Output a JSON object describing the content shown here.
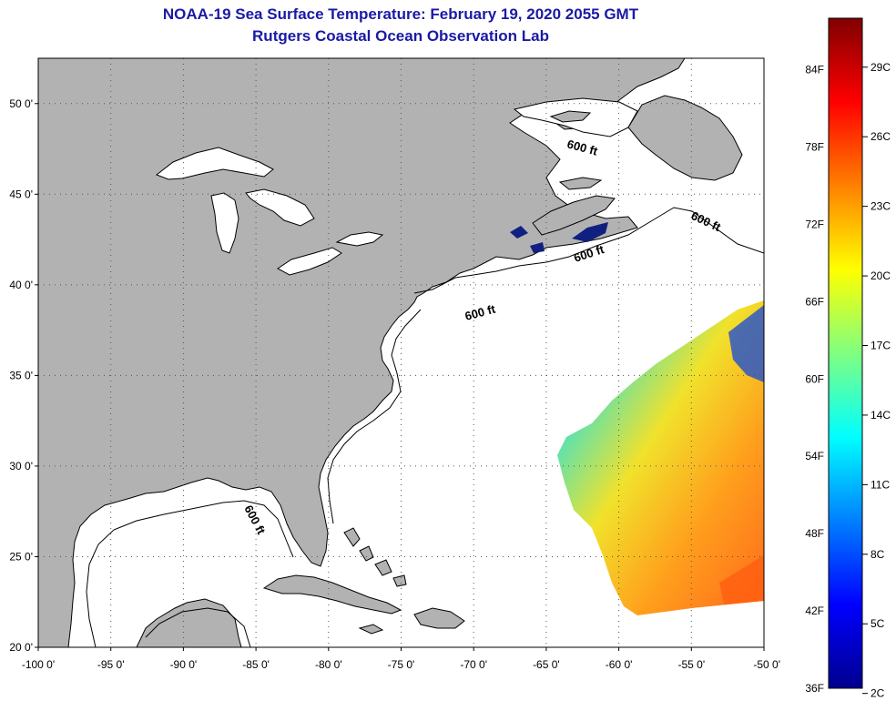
{
  "header": {
    "title": "NOAA-19 Sea Surface Temperature:  February 19, 2020 2055 GMT",
    "subtitle": "Rutgers Coastal Ocean Observation Lab"
  },
  "map": {
    "lat_range": [
      20,
      52.5
    ],
    "lon_range": [
      -100,
      -50
    ],
    "lat_ticks": [
      {
        "value": 50,
        "label": "50 0'"
      },
      {
        "value": 45,
        "label": "45 0'"
      },
      {
        "value": 40,
        "label": "40 0'"
      },
      {
        "value": 35,
        "label": "35 0'"
      },
      {
        "value": 30,
        "label": "30 0'"
      },
      {
        "value": 25,
        "label": "25 0'"
      },
      {
        "value": 20,
        "label": "20 0'"
      }
    ],
    "lon_ticks": [
      {
        "value": -100,
        "label": "-100 0'"
      },
      {
        "value": -95,
        "label": "-95 0'"
      },
      {
        "value": -90,
        "label": "-90 0'"
      },
      {
        "value": -85,
        "label": "-85 0'"
      },
      {
        "value": -80,
        "label": "-80 0'"
      },
      {
        "value": -75,
        "label": "-75 0'"
      },
      {
        "value": -70,
        "label": "-70 0'"
      },
      {
        "value": -65,
        "label": "-65 0'"
      },
      {
        "value": -60,
        "label": "-60 0'"
      },
      {
        "value": -55,
        "label": "-55 0'"
      },
      {
        "value": -50,
        "label": "-50 0'"
      }
    ],
    "contour_labels": [
      "600 ft",
      "600 ft",
      "600 ft",
      "600 ft",
      "600 ft"
    ],
    "colors": {
      "land": "#b2b2b2",
      "ocean": "#ffffff",
      "coastline": "#000000",
      "grid": "#555555"
    }
  },
  "colorbar": {
    "fahrenheit": [
      "36F",
      "42F",
      "48F",
      "54F",
      "60F",
      "66F",
      "72F",
      "78F",
      "84F"
    ],
    "celsius": [
      "2C",
      "5C",
      "8C",
      "11C",
      "14C",
      "17C",
      "20C",
      "23C",
      "26C",
      "29C"
    ],
    "min_f": 36,
    "max_f": 88,
    "gradient": [
      "#00008f",
      "#0000ff",
      "#0080ff",
      "#00ffff",
      "#80ff80",
      "#ffff00",
      "#ff8000",
      "#ff0000",
      "#800000"
    ]
  }
}
